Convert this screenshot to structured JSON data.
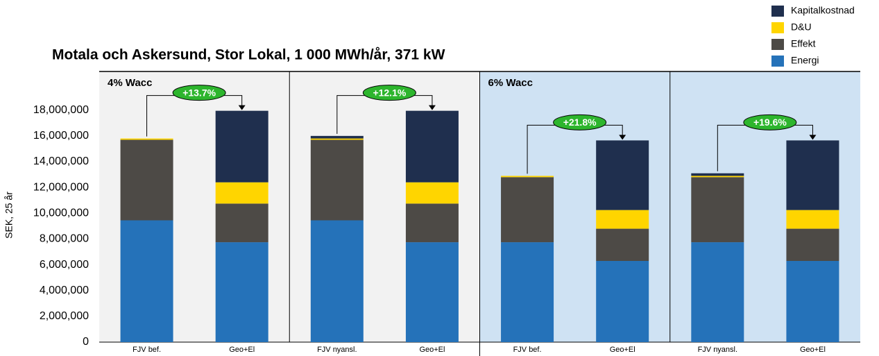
{
  "chart_data": {
    "type": "stacked_bar",
    "title": "Motala och Askersund, Stor Lokal, 1 000 MWh/år, 371 kW",
    "y_label": "SEK, 25 år",
    "categories": [
      "FJV bef.",
      "Geo+El",
      "FJV nyansl.",
      "Geo+El",
      "FJV bef.",
      "Geo+El",
      "FJV nyansl.",
      "Geo+El"
    ],
    "series": [
      {
        "name": "Energi",
        "color": "#2572b9",
        "values": [
          9450000,
          7750000,
          9450000,
          7750000,
          7750000,
          6300000,
          7750000,
          6300000
        ]
      },
      {
        "name": "Effekt",
        "color": "#4d4a46",
        "values": [
          6250000,
          3000000,
          6250000,
          3000000,
          5050000,
          2500000,
          5050000,
          2500000
        ]
      },
      {
        "name": "D&U",
        "color": "#ffd500",
        "values": [
          100000,
          1650000,
          100000,
          1650000,
          100000,
          1450000,
          100000,
          1450000
        ]
      },
      {
        "name": "Kapitalkostnad",
        "color": "#1f2f4e",
        "values": [
          0,
          5550000,
          200000,
          5550000,
          0,
          5400000,
          200000,
          5400000
        ]
      }
    ],
    "panels": [
      {
        "label": "4% Wacc",
        "color": "#f2f2f2"
      },
      {
        "label": "6% Wacc",
        "color": "#cfe2f3"
      }
    ],
    "annotations": [
      "+13.7%",
      "+12.1%",
      "+21.8%",
      "+19.6%"
    ],
    "ylim": [
      0,
      21000000
    ],
    "yticks": [
      0,
      {
        "value": 2000000,
        "label": "2,000,000"
      },
      {
        "value": 4000000,
        "label": "4,000,000"
      },
      {
        "value": 6000000,
        "label": "6,000,000"
      },
      {
        "value": 8000000,
        "label": "8,000,000"
      },
      {
        "value": 10000000,
        "label": "10,000,000"
      },
      {
        "value": 12000000,
        "label": "12,000,000"
      },
      {
        "value": 14000000,
        "label": "14,000,000"
      },
      {
        "value": 16000000,
        "label": "16,000,000"
      },
      {
        "value": 18000000,
        "label": "18,000,000"
      }
    ]
  }
}
